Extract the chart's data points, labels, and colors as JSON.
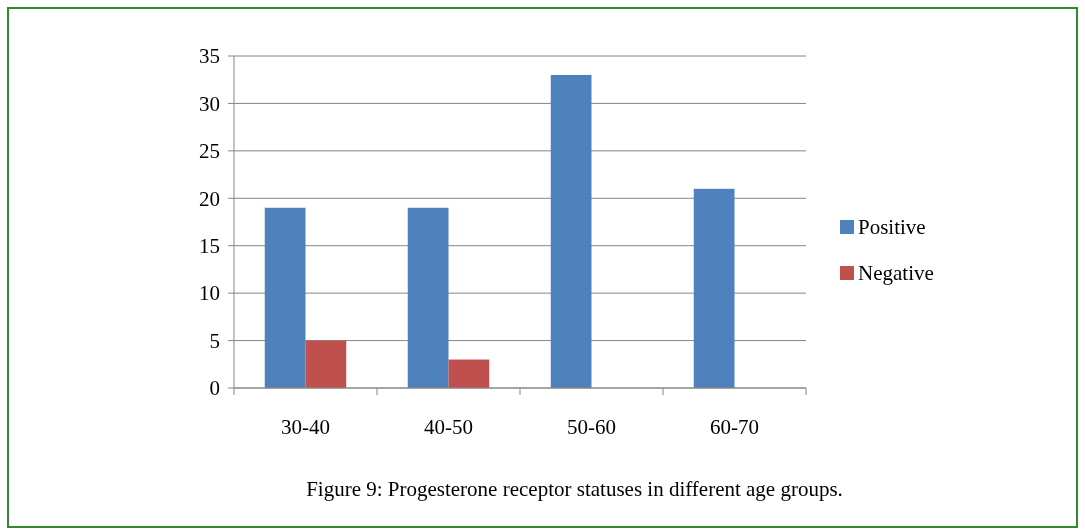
{
  "chart_data": {
    "type": "bar",
    "categories": [
      "30-40",
      "40-50",
      "50-60",
      "60-70"
    ],
    "series": [
      {
        "name": "Positive",
        "color": "#4f81bd",
        "values": [
          19,
          19,
          33,
          21
        ]
      },
      {
        "name": "Negative",
        "color": "#c0504d",
        "values": [
          5,
          3,
          0,
          0
        ]
      }
    ],
    "ylim": [
      0,
      35
    ],
    "yticks": [
      0,
      5,
      10,
      15,
      20,
      25,
      30,
      35
    ],
    "grid": "y",
    "legend": "right",
    "annotations": [
      "Figure 9: Progesterone receptor statuses in different age groups."
    ]
  }
}
